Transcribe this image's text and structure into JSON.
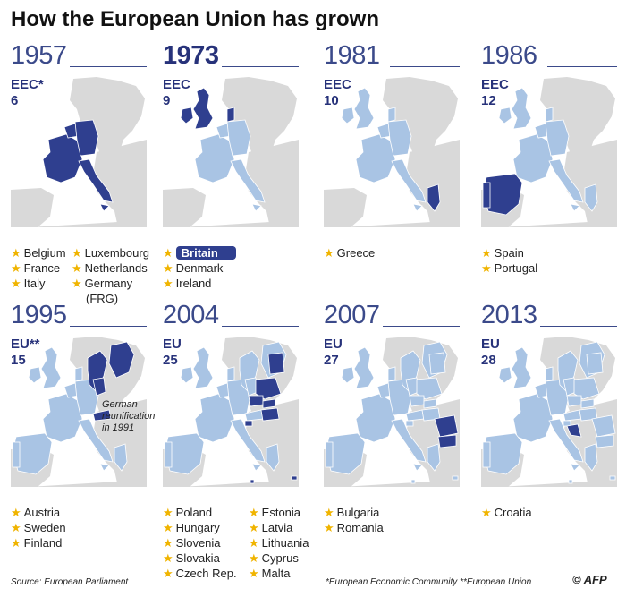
{
  "title": "How the European Union has grown",
  "panels": [
    {
      "year": "1957",
      "org": "EEC*",
      "count": "6",
      "countries": [
        "Belgium",
        "France",
        "Italy",
        "Luxembourg",
        "Netherlands",
        "Germany",
        "(FRG)"
      ]
    },
    {
      "year": "1973",
      "org": "EEC",
      "count": "9",
      "countries": [
        "Britain",
        "Denmark",
        "Ireland"
      ]
    },
    {
      "year": "1981",
      "org": "EEC",
      "count": "10",
      "countries": [
        "Greece"
      ]
    },
    {
      "year": "1986",
      "org": "EEC",
      "count": "12",
      "countries": [
        "Spain",
        "Portugal"
      ]
    },
    {
      "year": "1995",
      "org": "EU**",
      "count": "15",
      "countries": [
        "Austria",
        "Sweden",
        "Finland"
      ]
    },
    {
      "year": "2004",
      "org": "EU",
      "count": "25",
      "countries": [
        "Poland",
        "Hungary",
        "Slovenia",
        "Slovakia",
        "Czech Rep.",
        "Estonia",
        "Latvia",
        "Lithuania",
        "Cyprus",
        "Malta"
      ]
    },
    {
      "year": "2007",
      "org": "EU",
      "count": "27",
      "countries": [
        "Bulgaria",
        "Romania"
      ]
    },
    {
      "year": "2013",
      "org": "EU",
      "count": "28",
      "countries": [
        "Croatia"
      ]
    }
  ],
  "annotation": [
    "German",
    "reunification",
    "in 1991"
  ],
  "source": "Source: European Parliament",
  "footnote": "*European Economic Community  **European Union",
  "credit": "© AFP",
  "colors": {
    "existing": "#a9c4e4",
    "new": "#2f3f8f",
    "outside": "#d9d9d9",
    "star": "#f0b400"
  }
}
